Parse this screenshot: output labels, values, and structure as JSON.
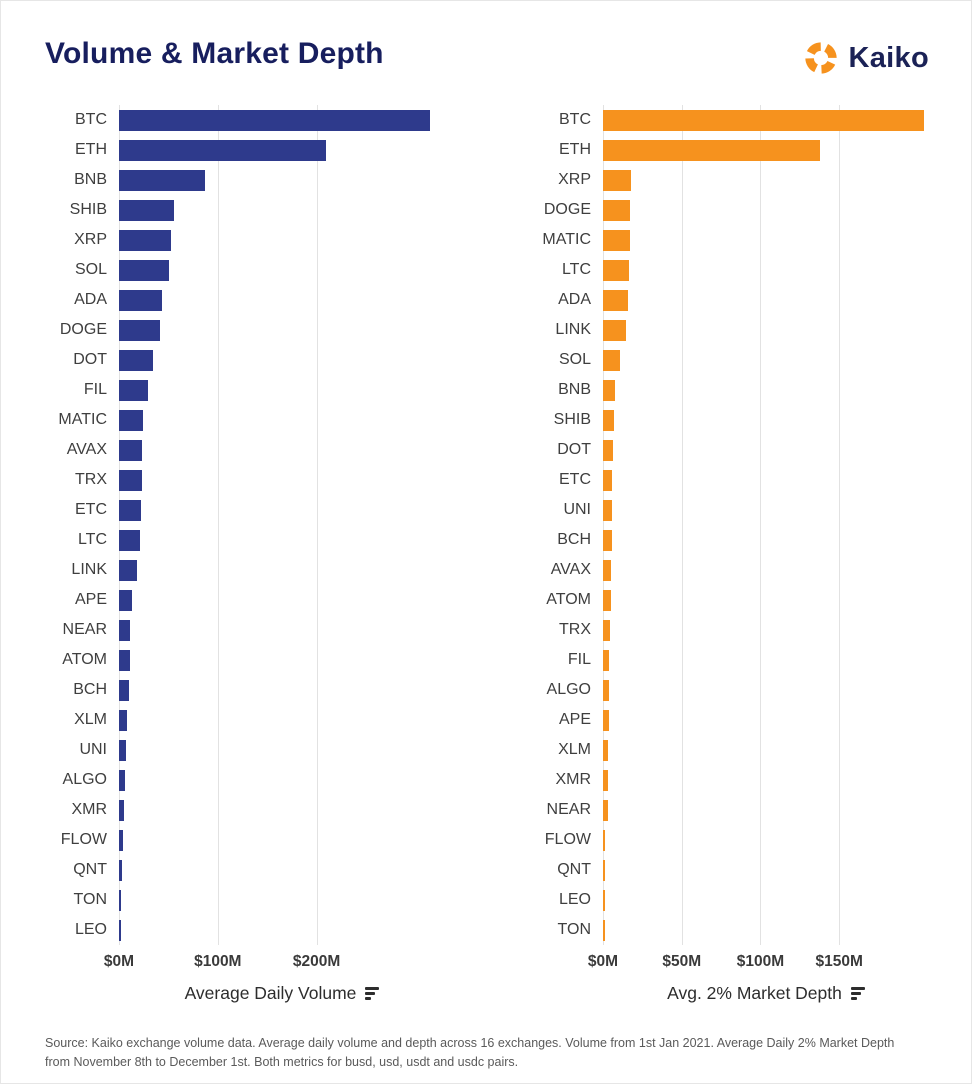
{
  "header": {
    "title": "Volume & Market Depth",
    "brand": "Kaiko"
  },
  "colors": {
    "navy_bar": "#2e3a8c",
    "orange_bar": "#f6921e",
    "title_navy": "#171e5e",
    "logo_orange": "#f6921e"
  },
  "chart_data": [
    {
      "type": "bar",
      "orientation": "horizontal",
      "xlabel": "Average Daily Volume",
      "bar_color": "#2e3a8c",
      "xlim": [
        0,
        330
      ],
      "grid": true,
      "legend": "none",
      "ticks": [
        {
          "value": 0,
          "label": "$0M"
        },
        {
          "value": 100,
          "label": "$100M"
        },
        {
          "value": 200,
          "label": "$200M"
        }
      ],
      "categories": [
        "BTC",
        "ETH",
        "BNB",
        "SHIB",
        "XRP",
        "SOL",
        "ADA",
        "DOGE",
        "DOT",
        "FIL",
        "MATIC",
        "AVAX",
        "TRX",
        "ETC",
        "LTC",
        "LINK",
        "APE",
        "NEAR",
        "ATOM",
        "BCH",
        "XLM",
        "UNI",
        "ALGO",
        "XMR",
        "FLOW",
        "QNT",
        "TON",
        "LEO"
      ],
      "values": [
        315,
        210,
        87,
        56,
        53,
        51,
        44,
        42,
        34,
        29,
        24,
        23,
        23,
        22,
        21,
        18,
        13,
        11,
        11,
        10,
        8,
        7,
        6.5,
        5.5,
        4.5,
        3.5,
        1.5,
        1.5
      ],
      "values_unit": "USD millions"
    },
    {
      "type": "bar",
      "orientation": "horizontal",
      "xlabel": "Avg. 2% Market Depth",
      "bar_color": "#f6921e",
      "xlim": [
        0,
        207
      ],
      "grid": true,
      "legend": "none",
      "ticks": [
        {
          "value": 0,
          "label": "$0M"
        },
        {
          "value": 50,
          "label": "$50M"
        },
        {
          "value": 100,
          "label": "$100M"
        },
        {
          "value": 150,
          "label": "$150M"
        }
      ],
      "categories": [
        "BTC",
        "ETH",
        "XRP",
        "DOGE",
        "MATIC",
        "LTC",
        "ADA",
        "LINK",
        "SOL",
        "BNB",
        "SHIB",
        "DOT",
        "ETC",
        "UNI",
        "BCH",
        "AVAX",
        "ATOM",
        "TRX",
        "FIL",
        "ALGO",
        "APE",
        "XLM",
        "XMR",
        "NEAR",
        "FLOW",
        "QNT",
        "LEO",
        "TON"
      ],
      "values": [
        204,
        138,
        18,
        17,
        17,
        16.5,
        16,
        14.5,
        11,
        7.5,
        7,
        6.5,
        6,
        6,
        5.5,
        5,
        5,
        4.7,
        3.6,
        3.6,
        3.5,
        3.3,
        3,
        2.9,
        1.5,
        1.4,
        1.1,
        1
      ],
      "values_unit": "USD millions"
    }
  ],
  "footer": {
    "source": "Source: Kaiko exchange volume data. Average daily volume and depth across 16 exchanges. Volume from 1st Jan 2021. Average Daily 2% Market Depth from November 8th to December 1st. Both metrics for busd, usd, usdt and usdc pairs."
  }
}
